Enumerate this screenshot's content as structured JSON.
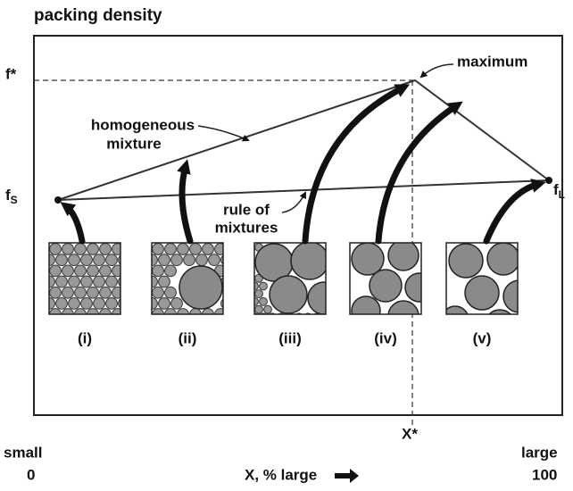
{
  "title": "packing density",
  "labels": {
    "f_star": "f*",
    "maximum": "maximum",
    "homogeneous": [
      "homogeneous",
      "mixture"
    ],
    "rule": [
      "rule of",
      "mixtures"
    ],
    "f_small": {
      "main": "f",
      "sub": "S"
    },
    "f_large": {
      "main": "f",
      "sub": "L"
    },
    "x_star": "X*"
  },
  "panels": [
    "(i)",
    "(ii)",
    "(iii)",
    "(iv)",
    "(v)"
  ],
  "axis": {
    "left": [
      "small",
      "0"
    ],
    "right": [
      "large",
      "100"
    ],
    "label": "X, % large"
  }
}
